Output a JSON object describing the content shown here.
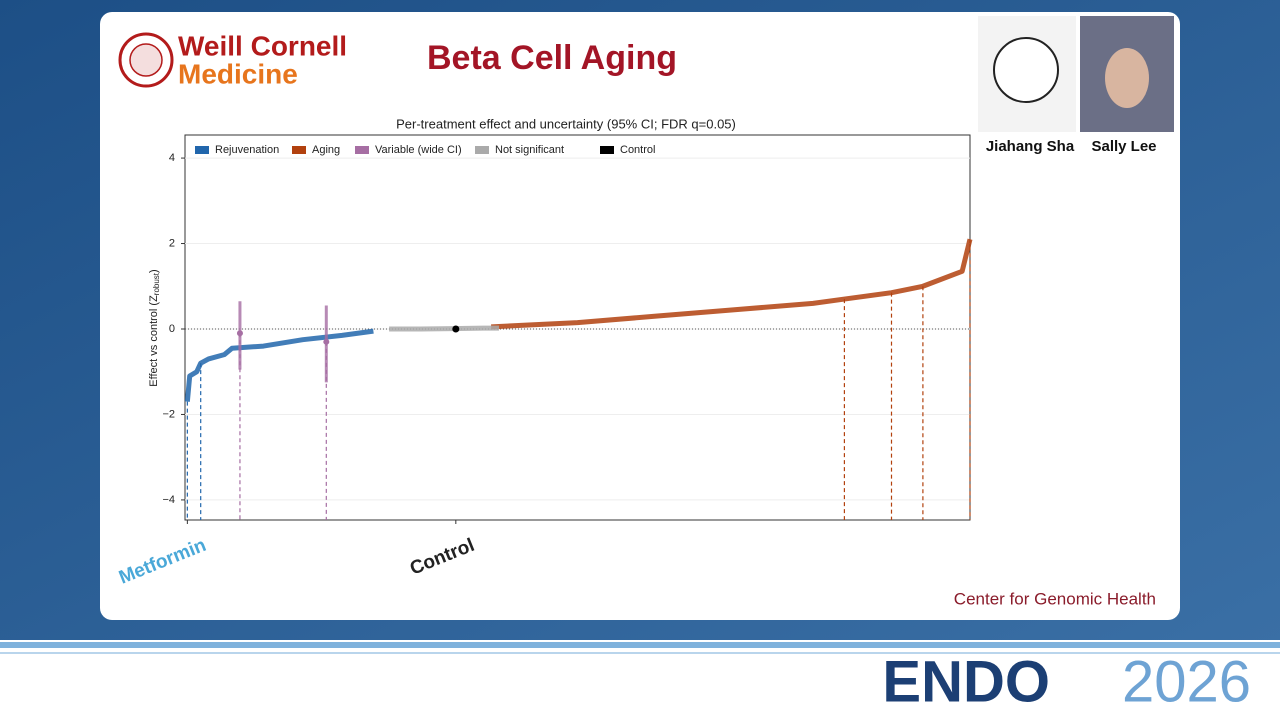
{
  "slide": {
    "logo_line1": "Weill Cornell",
    "logo_line2": "Medicine",
    "title": "Beta Cell Aging",
    "presenters": [
      "Jiahang Sha",
      "Sally Lee"
    ],
    "footer": "Center for Genomic Health",
    "conference": "ENDO",
    "year": "2026"
  },
  "chart_data": {
    "type": "ranked",
    "title": "Per-treatment effect and uncertainty (95% CI; FDR q=0.05)",
    "ylabel_parts": [
      "Effect vs control (Z",
      "robust",
      ")"
    ],
    "ylim": [
      -4.47,
      4.54
    ],
    "yticks": [
      {
        "value": -4,
        "label": "−4"
      },
      {
        "value": -2,
        "label": "−2"
      },
      0,
      2,
      4
    ],
    "xlim": [
      0,
      100
    ],
    "hline": 0,
    "legend": "upper left",
    "series": [
      {
        "name": "Rejuvenation",
        "color": "#2166ac",
        "x": [
          0.3,
          0.6,
          1.5,
          2,
          3,
          5,
          6,
          10,
          15,
          20,
          24
        ],
        "values": [
          -1.7,
          -1.1,
          -1.0,
          -0.8,
          -0.7,
          -0.6,
          -0.45,
          -0.4,
          -0.25,
          -0.15,
          -0.05
        ]
      },
      {
        "name": "Aging",
        "color": "#b2410e",
        "x": [
          39,
          50,
          60,
          70,
          80,
          84,
          90,
          94,
          99,
          100
        ],
        "values": [
          0.05,
          0.15,
          0.3,
          0.45,
          0.6,
          0.7,
          0.85,
          1.0,
          1.35,
          2.1
        ]
      },
      {
        "name": "Variable (wide CI)",
        "color": "#a66ea3",
        "x": [
          7,
          18
        ],
        "values": [
          -0.1,
          -0.3
        ],
        "low": [
          -0.95,
          -1.25
        ],
        "high": [
          0.65,
          0.55
        ]
      },
      {
        "name": "Not significant",
        "color": "#aaaaaa",
        "x": [
          26,
          30,
          34,
          38,
          40
        ],
        "values": [
          0.0,
          0.0,
          0.01,
          0.02,
          0.02
        ]
      },
      {
        "name": "Control",
        "color": "#000000",
        "x": [
          34.5
        ],
        "values": [
          0
        ]
      }
    ],
    "highlights": [
      0.3,
      2,
      7,
      18,
      84,
      90,
      94,
      100
    ],
    "annotations": [
      {
        "text": "Metformin",
        "x": 0.3,
        "color": "#4aa8d8"
      },
      {
        "text": "Control",
        "x": 34.5,
        "color": "#222222"
      }
    ]
  }
}
